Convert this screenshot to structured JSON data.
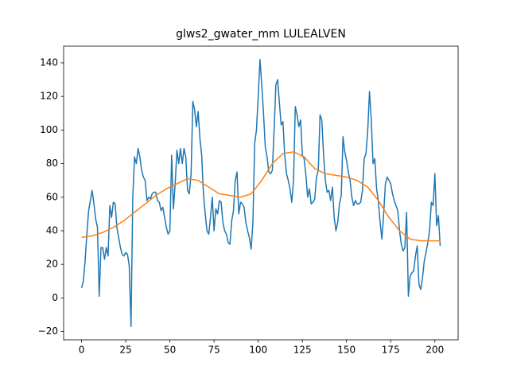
{
  "chart_data": {
    "type": "line",
    "title": "glws2_gwater_mm LULEALVEN",
    "x": [
      0,
      1,
      2,
      3,
      4,
      5,
      6,
      7,
      8,
      9,
      10,
      11,
      12,
      13,
      14,
      15,
      16,
      17,
      18,
      19,
      20,
      21,
      22,
      23,
      24,
      25,
      26,
      27,
      28,
      29,
      30,
      31,
      32,
      33,
      34,
      35,
      36,
      37,
      38,
      39,
      40,
      41,
      42,
      43,
      44,
      45,
      46,
      47,
      48,
      49,
      50,
      51,
      52,
      53,
      54,
      55,
      56,
      57,
      58,
      59,
      60,
      61,
      62,
      63,
      64,
      65,
      66,
      67,
      68,
      69,
      70,
      71,
      72,
      73,
      74,
      75,
      76,
      77,
      78,
      79,
      80,
      81,
      82,
      83,
      84,
      85,
      86,
      87,
      88,
      89,
      90,
      91,
      92,
      93,
      94,
      95,
      96,
      97,
      98,
      99,
      100,
      101,
      102,
      103,
      104,
      105,
      106,
      107,
      108,
      109,
      110,
      111,
      112,
      113,
      114,
      115,
      116,
      117,
      118,
      119,
      120,
      121,
      122,
      123,
      124,
      125,
      126,
      127,
      128,
      129,
      130,
      131,
      132,
      133,
      134,
      135,
      136,
      137,
      138,
      139,
      140,
      141,
      142,
      143,
      144,
      145,
      146,
      147,
      148,
      149,
      150,
      151,
      152,
      153,
      154,
      155,
      156,
      157,
      158,
      159,
      160,
      161,
      162,
      163,
      164,
      165,
      166,
      167,
      168,
      169,
      170,
      171,
      172,
      173,
      174,
      175,
      176,
      177,
      178,
      179,
      180,
      181,
      182,
      183,
      184,
      185,
      186,
      187,
      188,
      189,
      190,
      191,
      192,
      193,
      194,
      195,
      196,
      197,
      198,
      199,
      200,
      201,
      202,
      203
    ],
    "series": [
      {
        "color": "#1f77b4",
        "values": [
          6,
          10,
          22,
          38,
          52,
          58,
          64,
          56,
          47,
          42,
          1,
          30,
          30,
          23,
          30,
          25,
          55,
          48,
          57,
          56,
          42,
          36,
          30,
          26,
          25,
          27,
          26,
          19,
          -17,
          60,
          84,
          80,
          89,
          84,
          76,
          72,
          70,
          58,
          60,
          59,
          62,
          63,
          63,
          58,
          57,
          52,
          54,
          48,
          42,
          38,
          40,
          85,
          53,
          68,
          88,
          80,
          89,
          80,
          89,
          84,
          64,
          62,
          74,
          117,
          112,
          102,
          111,
          95,
          85,
          62,
          50,
          40,
          38,
          48,
          60,
          40,
          53,
          50,
          58,
          57,
          45,
          40,
          38,
          33,
          32,
          46,
          52,
          70,
          75,
          50,
          57,
          56,
          54,
          45,
          40,
          36,
          29,
          45,
          92,
          100,
          120,
          142,
          127,
          110,
          90,
          84,
          75,
          74,
          76,
          100,
          127,
          130,
          116,
          103,
          105,
          85,
          74,
          70,
          65,
          57,
          70,
          114,
          109,
          102,
          106,
          85,
          83,
          73,
          60,
          65,
          56,
          57,
          59,
          72,
          76,
          109,
          106,
          85,
          70,
          63,
          64,
          58,
          66,
          48,
          40,
          45,
          56,
          61,
          96,
          87,
          82,
          75,
          70,
          60,
          55,
          58,
          56,
          56,
          57,
          64,
          83,
          86,
          100,
          123,
          106,
          80,
          83,
          65,
          58,
          45,
          35,
          50,
          68,
          72,
          70,
          68,
          62,
          58,
          55,
          52,
          40,
          32,
          28,
          30,
          51,
          1,
          13,
          15,
          16,
          25,
          31,
          8,
          5,
          12,
          22,
          27,
          33,
          40,
          57,
          55,
          74,
          43,
          49,
          31
        ]
      },
      {
        "color": "#ff7f0e",
        "x": [
          0,
          6,
          12,
          18,
          24,
          30,
          36,
          42,
          48,
          54,
          60,
          66,
          72,
          78,
          84,
          90,
          96,
          102,
          108,
          114,
          120,
          126,
          132,
          138,
          144,
          150,
          156,
          162,
          168,
          174,
          180,
          186,
          192,
          198,
          203
        ],
        "values": [
          36,
          37,
          39,
          42,
          46,
          51,
          56,
          61,
          65,
          68,
          71,
          70,
          66,
          62,
          61,
          60,
          62,
          70,
          80,
          86,
          87,
          84,
          77,
          74,
          73,
          72,
          70,
          66,
          58,
          48,
          40,
          35,
          34,
          34,
          34
        ]
      }
    ],
    "xlim": [
      -10.15,
      213.15
    ],
    "xticks": [
      0,
      25,
      50,
      75,
      100,
      125,
      150,
      175,
      200
    ],
    "ylim": [
      -24.95,
      149.95
    ],
    "yticks": [
      {
        "value": -20,
        "label": "−20"
      },
      0,
      20,
      40,
      60,
      80,
      100,
      120,
      140
    ]
  }
}
